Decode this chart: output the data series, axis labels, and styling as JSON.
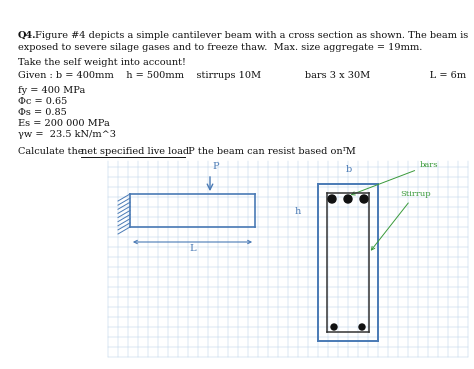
{
  "bg_color": "#ffffff",
  "grid_color": "#b8d0e8",
  "beam_color": "#4a7ab5",
  "annotation_color": "#3a9a3a",
  "text_color": "#111111",
  "dark_color": "#333333",
  "font_size": 7.0,
  "title_bold": "Q4.",
  "title_rest": "  Figure #4 depicts a simple cantilever beam with a cross section as shown. The beam is\n        exposed to severe silage gases and to freeze thaw.  Max. size aggregate = 19mm.",
  "line_self_wt": "Take the self weight into account!",
  "line_given": "Given : b = 400mm    h = 500mm    stirrups 10M              bars 3 x 30M                   L = 6m",
  "props": [
    "fy = 400 MPa",
    "Φc = 0.65",
    "Φs = 0.85",
    "Es = 200 000 MPa",
    "γw =  23.5 kN/m^3"
  ],
  "q_pre": "Calculate the ",
  "q_underline": "net specified live load",
  "q_post": " P the beam can resist based on M",
  "q_sub": "r",
  "q_end": "."
}
